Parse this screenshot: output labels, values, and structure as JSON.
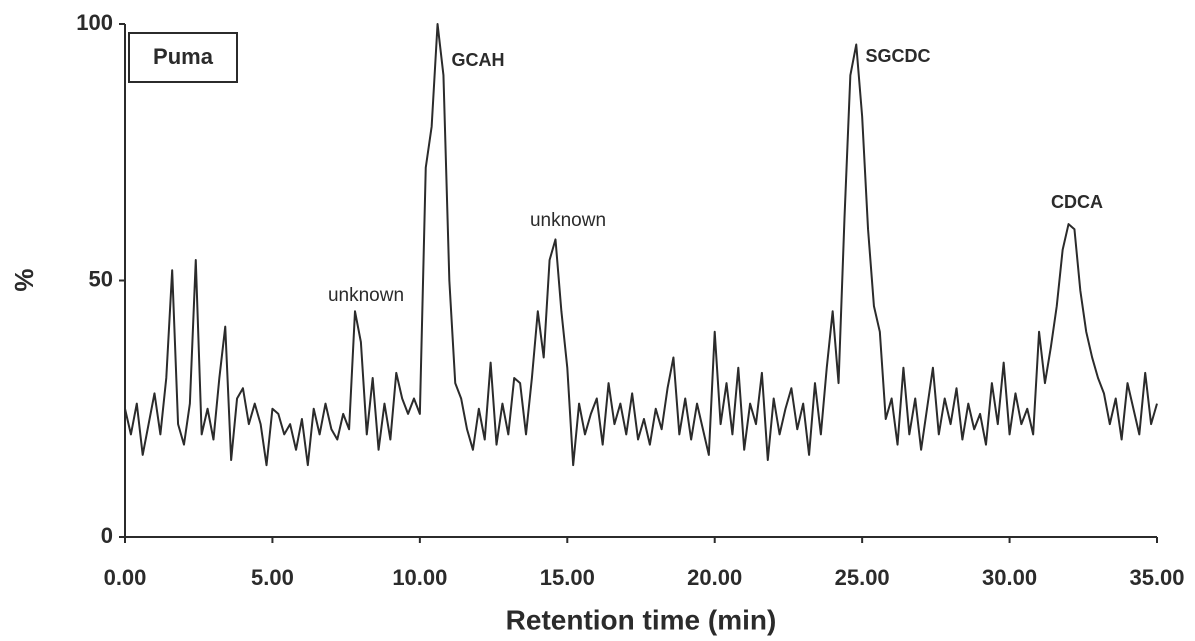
{
  "chart_data": {
    "type": "line",
    "panel_label": "Puma",
    "xlabel": "Retention time (min)",
    "ylabel": "%",
    "annotations": [
      "GCAH",
      "unknown",
      "unknown",
      "SGCDC",
      "CDCA"
    ],
    "x": [
      0.0,
      0.2,
      0.4,
      0.6,
      0.8,
      1.0,
      1.2,
      1.4,
      1.6,
      1.8,
      2.0,
      2.2,
      2.4,
      2.6,
      2.8,
      3.0,
      3.2,
      3.4,
      3.6,
      3.8,
      4.0,
      4.2,
      4.4,
      4.6,
      4.8,
      5.0,
      5.2,
      5.4,
      5.6,
      5.8,
      6.0,
      6.2,
      6.4,
      6.6,
      6.8,
      7.0,
      7.2,
      7.4,
      7.6,
      7.8,
      8.0,
      8.2,
      8.4,
      8.6,
      8.8,
      9.0,
      9.2,
      9.4,
      9.6,
      9.8,
      10.0,
      10.2,
      10.4,
      10.6,
      10.8,
      11.0,
      11.2,
      11.4,
      11.6,
      11.8,
      12.0,
      12.2,
      12.4,
      12.6,
      12.8,
      13.0,
      13.2,
      13.4,
      13.6,
      13.8,
      14.0,
      14.2,
      14.4,
      14.6,
      14.8,
      15.0,
      15.2,
      15.4,
      15.6,
      15.8,
      16.0,
      16.2,
      16.4,
      16.6,
      16.8,
      17.0,
      17.2,
      17.4,
      17.6,
      17.8,
      18.0,
      18.2,
      18.4,
      18.6,
      18.8,
      19.0,
      19.2,
      19.4,
      19.6,
      19.8,
      20.0,
      20.2,
      20.4,
      20.6,
      20.8,
      21.0,
      21.2,
      21.4,
      21.6,
      21.8,
      22.0,
      22.2,
      22.4,
      22.6,
      22.8,
      23.0,
      23.2,
      23.4,
      23.6,
      23.8,
      24.0,
      24.2,
      24.4,
      24.6,
      24.8,
      25.0,
      25.2,
      25.4,
      25.6,
      25.8,
      26.0,
      26.2,
      26.4,
      26.6,
      26.8,
      27.0,
      27.2,
      27.4,
      27.6,
      27.8,
      28.0,
      28.2,
      28.4,
      28.6,
      28.8,
      29.0,
      29.2,
      29.4,
      29.6,
      29.8,
      30.0,
      30.2,
      30.4,
      30.6,
      30.8,
      31.0,
      31.2,
      31.4,
      31.6,
      31.8,
      32.0,
      32.2,
      32.4,
      32.6,
      32.8,
      33.0,
      33.2,
      33.4,
      33.6,
      33.8,
      34.0,
      34.2,
      34.4,
      34.6,
      34.8,
      35.0
    ],
    "series": [
      {
        "color": "#2b2b2b",
        "values": [
          25,
          20,
          26,
          16,
          22,
          28,
          20,
          31,
          52,
          22,
          18,
          26,
          54,
          20,
          25,
          19,
          31,
          41,
          15,
          27,
          29,
          22,
          26,
          22,
          14,
          25,
          24,
          20,
          22,
          17,
          23,
          14,
          25,
          20,
          26,
          21,
          19,
          24,
          21,
          44,
          38,
          20,
          31,
          17,
          26,
          19,
          32,
          27,
          24,
          27,
          24,
          72,
          80,
          100,
          90,
          50,
          30,
          27,
          21,
          17,
          25,
          19,
          34,
          18,
          26,
          20,
          31,
          30,
          20,
          31,
          44,
          35,
          54,
          58,
          44,
          33,
          14,
          26,
          20,
          24,
          27,
          18,
          30,
          22,
          26,
          20,
          28,
          19,
          23,
          18,
          25,
          21,
          29,
          35,
          20,
          27,
          19,
          26,
          21,
          16,
          40,
          22,
          30,
          20,
          33,
          17,
          26,
          22,
          32,
          15,
          27,
          20,
          25,
          29,
          21,
          26,
          16,
          30,
          20,
          33,
          44,
          30,
          62,
          90,
          96,
          82,
          60,
          45,
          40,
          23,
          27,
          18,
          33,
          20,
          27,
          17,
          25,
          33,
          20,
          27,
          22,
          29,
          19,
          26,
          21,
          24,
          18,
          30,
          22,
          34,
          20,
          28,
          22,
          25,
          20,
          40,
          30,
          37,
          45,
          56,
          61,
          60,
          48,
          40,
          35,
          31,
          28,
          22,
          27,
          19,
          30,
          25,
          20,
          32,
          22,
          26
        ]
      }
    ],
    "xlim": [
      0,
      35
    ],
    "xticks": [
      {
        "value": 0,
        "label": "0.00"
      },
      {
        "value": 5,
        "label": "5.00"
      },
      {
        "value": 10,
        "label": "10.00"
      },
      {
        "value": 15,
        "label": "15.00"
      },
      {
        "value": 20,
        "label": "20.00"
      },
      {
        "value": 25,
        "label": "25.00"
      },
      {
        "value": 30,
        "label": "30.00"
      },
      {
        "value": 35,
        "label": "35.00"
      }
    ],
    "ylim": [
      0,
      100
    ],
    "yticks": [
      0,
      50,
      100
    ]
  }
}
